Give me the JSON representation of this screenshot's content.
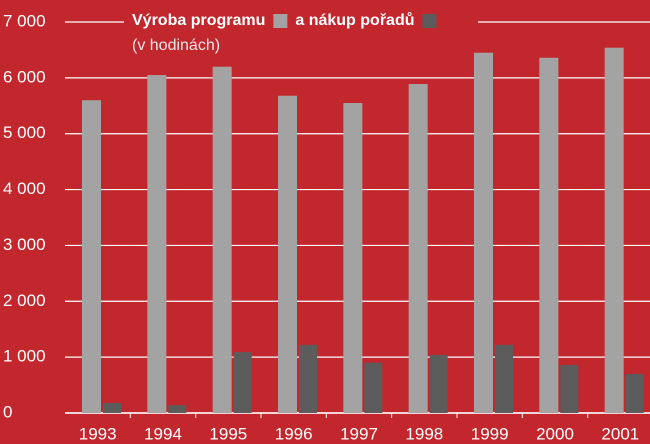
{
  "chart_data": {
    "type": "bar",
    "subtitle": "(v hodinách)",
    "categories": [
      "1993",
      "1994",
      "1995",
      "1996",
      "1997",
      "1998",
      "1999",
      "2000",
      "2001"
    ],
    "series": [
      {
        "name": "Výroba programu",
        "color": "#a3a3a3",
        "values": [
          5600,
          6050,
          6200,
          5680,
          5550,
          5890,
          6450,
          6360,
          6540
        ]
      },
      {
        "name": "a nákup pořadů",
        "color": "#5c5c5c",
        "values": [
          180,
          140,
          1090,
          1220,
          900,
          1040,
          1220,
          860,
          700
        ]
      }
    ],
    "ylim": [
      0,
      7000
    ],
    "yticks": [
      0,
      {
        "value": 1000,
        "label": "1 000"
      },
      {
        "value": 2000,
        "label": "2 000"
      },
      {
        "value": 3000,
        "label": "3 000"
      },
      {
        "value": 4000,
        "label": "4 000"
      },
      {
        "value": 5000,
        "label": "5 000"
      },
      {
        "value": 6000,
        "label": "6 000"
      },
      {
        "value": 7000,
        "label": "7 000"
      }
    ],
    "grid": true
  }
}
